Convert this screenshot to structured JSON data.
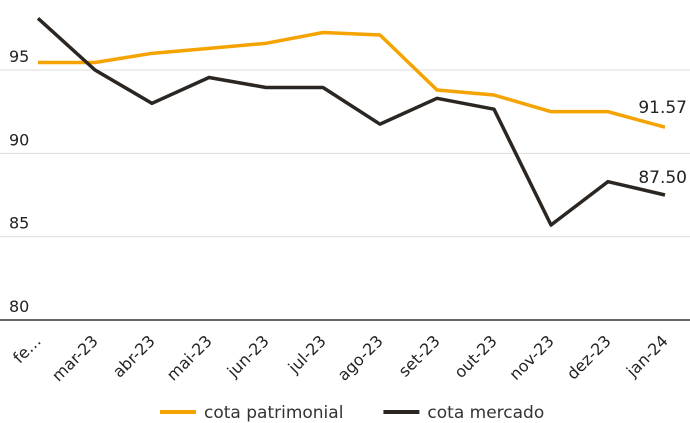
{
  "chart_data": {
    "type": "line",
    "categories": [
      "fe…",
      "mar-23",
      "abr-23",
      "mai-23",
      "jun-23",
      "jul-23",
      "ago-23",
      "set-23",
      "out-23",
      "nov-23",
      "dez-23",
      "jan-24"
    ],
    "series": [
      {
        "name": "cota patrimonial",
        "color": "#f5a300",
        "values": [
          95.45,
          95.45,
          96.0,
          96.3,
          96.6,
          97.25,
          97.1,
          93.8,
          93.5,
          92.5,
          92.5,
          91.57
        ],
        "value_labels": [
          null,
          null,
          null,
          null,
          null,
          null,
          null,
          null,
          null,
          null,
          null,
          "91.57"
        ]
      },
      {
        "name": "cota mercado",
        "color": "#2b2621",
        "values": [
          98.1,
          95.0,
          93.0,
          94.55,
          93.95,
          93.95,
          91.75,
          93.3,
          92.65,
          85.7,
          88.3,
          87.5
        ],
        "value_labels": [
          null,
          null,
          null,
          null,
          null,
          null,
          null,
          null,
          null,
          null,
          null,
          "87.50"
        ]
      }
    ],
    "ylim": [
      80,
      98.6
    ],
    "yticks": [
      80,
      85,
      90,
      95
    ],
    "grid": true,
    "legend": "bottom"
  }
}
